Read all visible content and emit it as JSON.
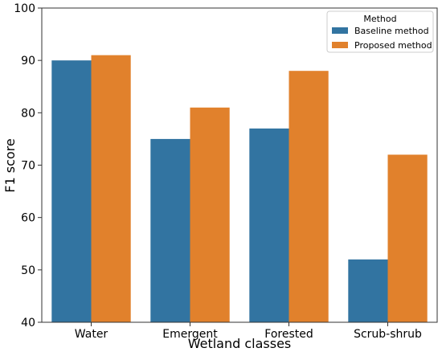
{
  "chart_data": {
    "type": "bar",
    "title": "",
    "xlabel": "Wetland classes",
    "ylabel": "F1 score",
    "ylim": [
      40,
      100
    ],
    "yticks": [
      40,
      50,
      60,
      70,
      80,
      90,
      100
    ],
    "categories": [
      "Water",
      "Emergent",
      "Forested",
      "Scrub-shrub"
    ],
    "series": [
      {
        "name": "Baseline method",
        "values": [
          90,
          75,
          77,
          52
        ],
        "color": "#3274a1"
      },
      {
        "name": "Proposed method",
        "values": [
          91,
          81,
          88,
          72
        ],
        "color": "#e1812c"
      }
    ],
    "legend": {
      "title": "Method",
      "position": "top-right"
    },
    "grid": false
  }
}
